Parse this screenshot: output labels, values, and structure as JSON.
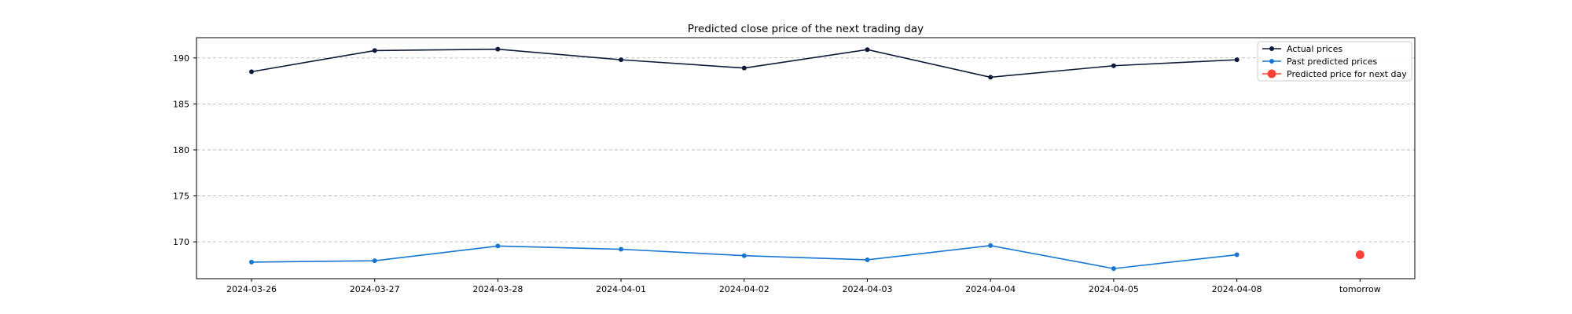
{
  "chart_data": {
    "type": "line",
    "title": "Predicted close price of the next trading day",
    "xlabel": "",
    "ylabel": "",
    "categories": [
      "2024-03-26",
      "2024-03-27",
      "2024-03-28",
      "2024-04-01",
      "2024-04-02",
      "2024-04-03",
      "2024-04-04",
      "2024-04-05",
      "2024-04-08",
      "tomorrow"
    ],
    "ylim": [
      166,
      192.2
    ],
    "yticks": [
      170,
      175,
      180,
      185,
      190
    ],
    "grid": "y-dashed",
    "legend_position": "top-right",
    "series": [
      {
        "name": "Actual prices",
        "color": "#0d1b3a",
        "marker": "circle",
        "values": [
          188.5,
          190.8,
          190.95,
          189.8,
          188.9,
          190.9,
          187.9,
          189.15,
          189.8,
          null
        ]
      },
      {
        "name": "Past predicted prices",
        "color": "#1676d2",
        "marker": "circle",
        "values": [
          167.8,
          167.95,
          169.55,
          169.2,
          168.5,
          168.05,
          169.6,
          167.1,
          168.6,
          null
        ]
      },
      {
        "name": "Predicted price for next day",
        "color": "#ff4136",
        "marker": "large-circle",
        "values": [
          null,
          null,
          null,
          null,
          null,
          null,
          null,
          null,
          null,
          168.6
        ]
      }
    ]
  }
}
